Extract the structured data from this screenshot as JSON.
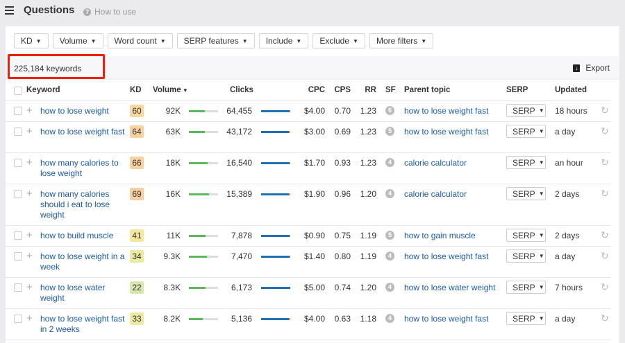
{
  "header": {
    "title": "Questions",
    "help": "How to use"
  },
  "filters": [
    "KD",
    "Volume",
    "Word count",
    "SERP features",
    "Include",
    "Exclude",
    "More filters"
  ],
  "count": "225,184 keywords",
  "export": "Export",
  "columns": {
    "keyword": "Keyword",
    "kd": "KD",
    "volume": "Volume",
    "clicks": "Clicks",
    "cpc": "CPC",
    "cps": "CPS",
    "rr": "RR",
    "sf": "SF",
    "parent": "Parent topic",
    "serp": "SERP",
    "updated": "Updated"
  },
  "colors": {
    "accent": "#1a5aa8",
    "highlight": "#f21f0a",
    "kd_orange": "#f8d1a0",
    "kd_yellow": "#f3e6a0",
    "kd_olive": "#ece9a0",
    "kd_green": "#d9e6b0"
  },
  "rows": [
    {
      "keyword": "how to lose weight",
      "kd": "60",
      "kd_color": "#f8d8a0",
      "volume": "92K",
      "volume_fill": 0.55,
      "clicks": "64,455",
      "clicks_fill": 0.97,
      "cpc": "$4.00",
      "cps": "0.70",
      "rr": "1.23",
      "sf": "6",
      "parent": "how to lose weight fast",
      "serp": "SERP",
      "updated": "18 hours",
      "lines": 1
    },
    {
      "keyword": "how to lose weight fast",
      "kd": "64",
      "kd_color": "#f8d1a0",
      "volume": "63K",
      "volume_fill": 0.55,
      "clicks": "43,172",
      "clicks_fill": 0.95,
      "cpc": "$3.00",
      "cps": "0.69",
      "rr": "1.23",
      "sf": "5",
      "parent": "how to lose weight fast",
      "serp": "SERP",
      "updated": "a day",
      "lines": 2
    },
    {
      "keyword": "how many calories to lose weight",
      "kd": "66",
      "kd_color": "#f8d1a0",
      "volume": "18K",
      "volume_fill": 0.65,
      "clicks": "16,540",
      "clicks_fill": 0.98,
      "cpc": "$1.70",
      "cps": "0.93",
      "rr": "1.23",
      "sf": "4",
      "parent": "calorie calculator",
      "serp": "SERP",
      "updated": "an hour",
      "lines": 2
    },
    {
      "keyword": "how many calories should i eat to lose weight",
      "kd": "69",
      "kd_color": "#f8cfa0",
      "volume": "16K",
      "volume_fill": 0.7,
      "clicks": "15,389",
      "clicks_fill": 0.96,
      "cpc": "$1.90",
      "cps": "0.96",
      "rr": "1.20",
      "sf": "4",
      "parent": "calorie calculator",
      "serp": "SERP",
      "updated": "2 days",
      "lines": 3
    },
    {
      "keyword": "how to build muscle",
      "kd": "41",
      "kd_color": "#f5e6a0",
      "volume": "11K",
      "volume_fill": 0.56,
      "clicks": "7,878",
      "clicks_fill": 0.98,
      "cpc": "$0.90",
      "cps": "0.75",
      "rr": "1.19",
      "sf": "5",
      "parent": "how to gain muscle",
      "serp": "SERP",
      "updated": "2 days",
      "lines": 1
    },
    {
      "keyword": "how to lose weight in a week",
      "kd": "34",
      "kd_color": "#ece9a0",
      "volume": "9.3K",
      "volume_fill": 0.62,
      "clicks": "7,470",
      "clicks_fill": 0.98,
      "cpc": "$1.40",
      "cps": "0.80",
      "rr": "1.19",
      "sf": "4",
      "parent": "how to lose weight fast",
      "serp": "SERP",
      "updated": "a day",
      "lines": 2
    },
    {
      "keyword": "how to lose water weight",
      "kd": "22",
      "kd_color": "#d9e6b0",
      "volume": "8.3K",
      "volume_fill": 0.56,
      "clicks": "6,173",
      "clicks_fill": 1.0,
      "cpc": "$5.00",
      "cps": "0.74",
      "rr": "1.20",
      "sf": "4",
      "parent": "how to lose water weight",
      "serp": "SERP",
      "updated": "7 hours",
      "lines": 2
    },
    {
      "keyword": "how to lose weight fast in 2 weeks",
      "kd": "33",
      "kd_color": "#ece9a0",
      "volume": "8.2K",
      "volume_fill": 0.48,
      "clicks": "5,136",
      "clicks_fill": 0.95,
      "cpc": "$4.00",
      "cps": "0.63",
      "rr": "1.18",
      "sf": "4",
      "parent": "how to lose weight fast",
      "serp": "SERP",
      "updated": "a day",
      "lines": 2
    }
  ]
}
